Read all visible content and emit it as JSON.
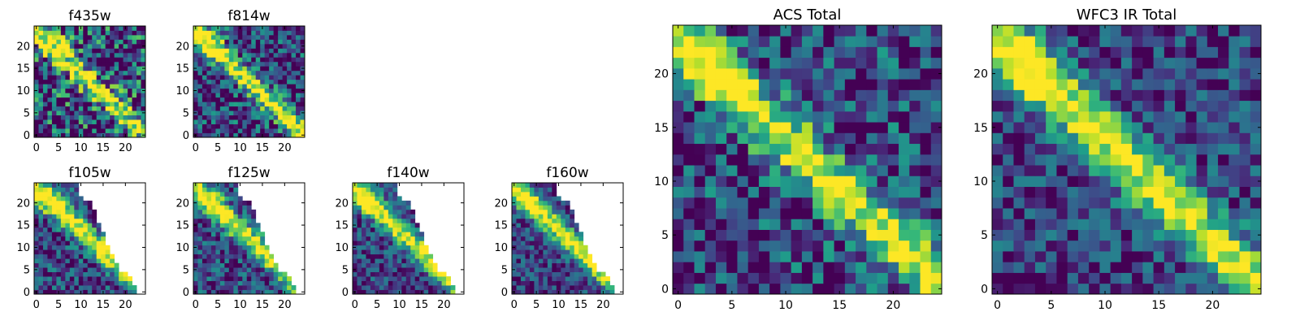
{
  "chart_data": [
    {
      "type": "heatmap",
      "title": "f435w",
      "coverage": "full",
      "seed": 11,
      "noise": 0.55,
      "xticks": [
        "0",
        "5",
        "10",
        "15",
        "20"
      ],
      "yticks": [
        "0",
        "5",
        "10",
        "15",
        "20"
      ],
      "xlim": [
        0,
        25
      ],
      "ylim": [
        0,
        25
      ]
    },
    {
      "type": "heatmap",
      "title": "f814w",
      "coverage": "full",
      "seed": 23,
      "noise": 0.38,
      "xticks": [
        "0",
        "5",
        "10",
        "15",
        "20"
      ],
      "yticks": [
        "0",
        "5",
        "10",
        "15",
        "20"
      ],
      "xlim": [
        0,
        25
      ],
      "ylim": [
        0,
        25
      ]
    },
    {
      "type": "heatmap",
      "title": "f105w",
      "coverage": "partial",
      "seed": 37,
      "noise": 0.3,
      "xticks": [
        "0",
        "5",
        "10",
        "15",
        "20"
      ],
      "yticks": [
        "0",
        "5",
        "10",
        "15",
        "20"
      ],
      "xlim": [
        0,
        25
      ],
      "ylim": [
        0,
        25
      ]
    },
    {
      "type": "heatmap",
      "title": "f125w",
      "coverage": "partial",
      "seed": 41,
      "noise": 0.3,
      "xticks": [
        "0",
        "5",
        "10",
        "15",
        "20"
      ],
      "yticks": [
        "0",
        "5",
        "10",
        "15",
        "20"
      ],
      "xlim": [
        0,
        25
      ],
      "ylim": [
        0,
        25
      ]
    },
    {
      "type": "heatmap",
      "title": "f140w",
      "coverage": "partial",
      "seed": 53,
      "noise": 0.26,
      "xticks": [
        "0",
        "5",
        "10",
        "15",
        "20"
      ],
      "yticks": [
        "0",
        "5",
        "10",
        "15",
        "20"
      ],
      "xlim": [
        0,
        25
      ],
      "ylim": [
        0,
        25
      ]
    },
    {
      "type": "heatmap",
      "title": "f160w",
      "coverage": "partial",
      "seed": 67,
      "noise": 0.24,
      "xticks": [
        "0",
        "5",
        "10",
        "15",
        "20"
      ],
      "yticks": [
        "0",
        "5",
        "10",
        "15",
        "20"
      ],
      "xlim": [
        0,
        25
      ],
      "ylim": [
        0,
        25
      ]
    },
    {
      "type": "heatmap",
      "title": "ACS Total",
      "coverage": "full",
      "seed": 79,
      "noise": 0.36,
      "xticks": [
        "0",
        "5",
        "10",
        "15",
        "20"
      ],
      "yticks": [
        "0",
        "5",
        "10",
        "15",
        "20"
      ],
      "xlim": [
        0,
        25
      ],
      "ylim": [
        0,
        25
      ]
    },
    {
      "type": "heatmap",
      "title": "WFC3 IR Total",
      "coverage": "full",
      "seed": 97,
      "noise": 0.26,
      "xticks": [
        "0",
        "5",
        "10",
        "15",
        "20"
      ],
      "yticks": [
        "0",
        "5",
        "10",
        "15",
        "20"
      ],
      "xlim": [
        0,
        25
      ],
      "ylim": [
        0,
        25
      ]
    }
  ],
  "colormap": "viridis"
}
